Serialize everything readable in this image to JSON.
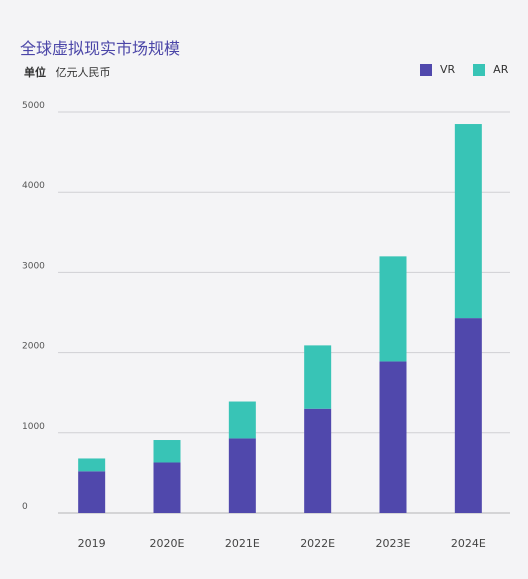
{
  "chart_data": {
    "type": "bar",
    "stacked": true,
    "title": "全球虚拟现实市场规模",
    "unit_label": "单位",
    "unit_value": "亿元人民币",
    "categories": [
      "2019",
      "2020E",
      "2021E",
      "2022E",
      "2023E",
      "2024E"
    ],
    "series": [
      {
        "name": "VR",
        "color": "#5048ac",
        "values": [
          520,
          630,
          930,
          1300,
          1890,
          2430
        ]
      },
      {
        "name": "AR",
        "color": "#38c4b6",
        "values": [
          160,
          280,
          460,
          790,
          1310,
          2420
        ]
      }
    ],
    "yticks": [
      "0",
      "1000",
      "2000",
      "3000",
      "4000",
      "5000"
    ],
    "ylim": [
      0,
      5000
    ],
    "grid": true,
    "legend_position": "top-right"
  }
}
